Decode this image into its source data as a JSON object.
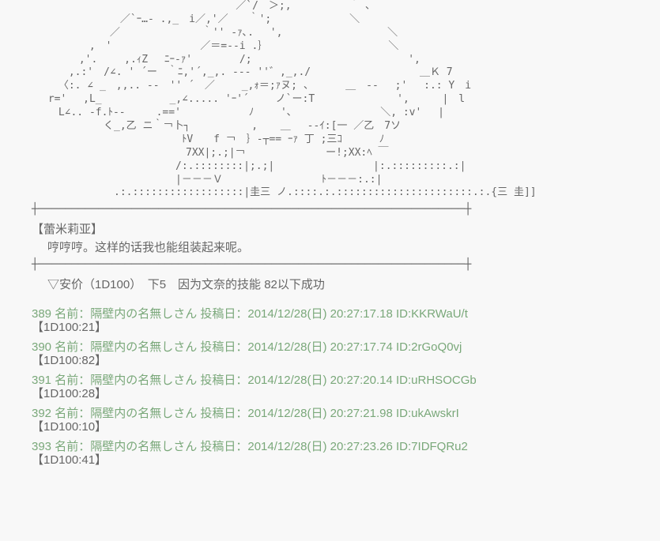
{
  "ascii_art": "                                 ／`/　＞;,　　　　　 ｀ ､\n　　　　　　　　 ／`ｰ…- .,_　i／,'／　　｀';　　　　　　　 ＼\n　　　　　　　 ／　　　　　　　　｀'' ‐ｧ､.　 ',　　　　　　　　　  ＼\n　　　　　 ,　'　　　　　　　　 ／＝=‐-i .｝　　　　　　　　　　　  ＼\n　　　　 ,'.　　 ,.ｨZ　 ﾆｰ-ｧ'　　　　 /;　　　　　　　　　　　　　 　 ',\n　　　 ,.:'　/∠. ' ´ー　｀ﾆ,'´,_,. --‐ ''゛,_,./　　　　　　　　　　 ＿Ｋ 7\n　　 〈:. ∠ _　,,.. -‐　'' ´　／　　 _,ｫ＝;ｧヌ; 、　　　 ＿　-‐ 　;'　 :.: Y　i\n　 r='　 ,L_　　　　　　 _,∠..... 'ｰ'´　　 ノ`ー:T　　　　　　　　',　 　 |　l\n　　 L∠.. -f.ﾄ-‐　　　.=='　　　　　　 ﾉ　　 '､　　　　　　　　 ＼, :v'　 |\n　　　　　　　く_,乙 ニ｀￢卜┐　　　　　　, 　 ＿　 --ｲ:[一 ／乙　7ソ\n　　　　　　　　　　　　　　 ﾄV　　f ￢　｝‐┬== ｰｧ 丁 ;三ｺ　　　 ﾉ\n　　　　　　　　　　　　　　　7XX|;.;|￢　　　　 　 　 ー!;XX:ﾍ ￣\n　　　　　　　　　　　　　　/:.::::::::|;.;|　　　　　　　　　 |:.:::::::::.:|\n　　　　　　　　　　　　　　|－－－Ｖ　　　　　　　　　 ﾄ－－－:.:|\n　　　　　　　　.:.::::::::::::::::::|圭三 ノ.::::.:.::::::::::::::::::::::.:.{三 圭]]",
  "separator_line": "┼────────────────────────────────────────────────────────────────┼",
  "character_name": "【蕾米莉亚】",
  "dialogue_text": "哼哼哼。这样的话我也能组装起来呢。",
  "dice_instruction": "▽安价（1D100）　下5　因为文奈的技能 82以下成功",
  "posts": [
    {
      "no": "389",
      "meta": "名前：隔壁内の名無しさん 投稿日：2014/12/28(日) 20:27:17.18 ID:KKRWaU/t",
      "body": "【1D100:21】"
    },
    {
      "no": "390",
      "meta": "名前：隔壁内の名無しさん 投稿日：2014/12/28(日) 20:27:17.74 ID:2rGoQ0vj",
      "body": "【1D100:82】"
    },
    {
      "no": "391",
      "meta": "名前：隔壁内の名無しさん 投稿日：2014/12/28(日) 20:27:20.14 ID:uRHSOCGb",
      "body": "【1D100:28】"
    },
    {
      "no": "392",
      "meta": "名前：隔壁内の名無しさん 投稿日：2014/12/28(日) 20:27:21.98 ID:ukAwskrI",
      "body": "【1D100:10】"
    },
    {
      "no": "393",
      "meta": "名前：隔壁内の名無しさん 投稿日：2014/12/28(日) 20:27:23.26 ID:7IDFQRu2",
      "body": "【1D100:41】"
    }
  ]
}
